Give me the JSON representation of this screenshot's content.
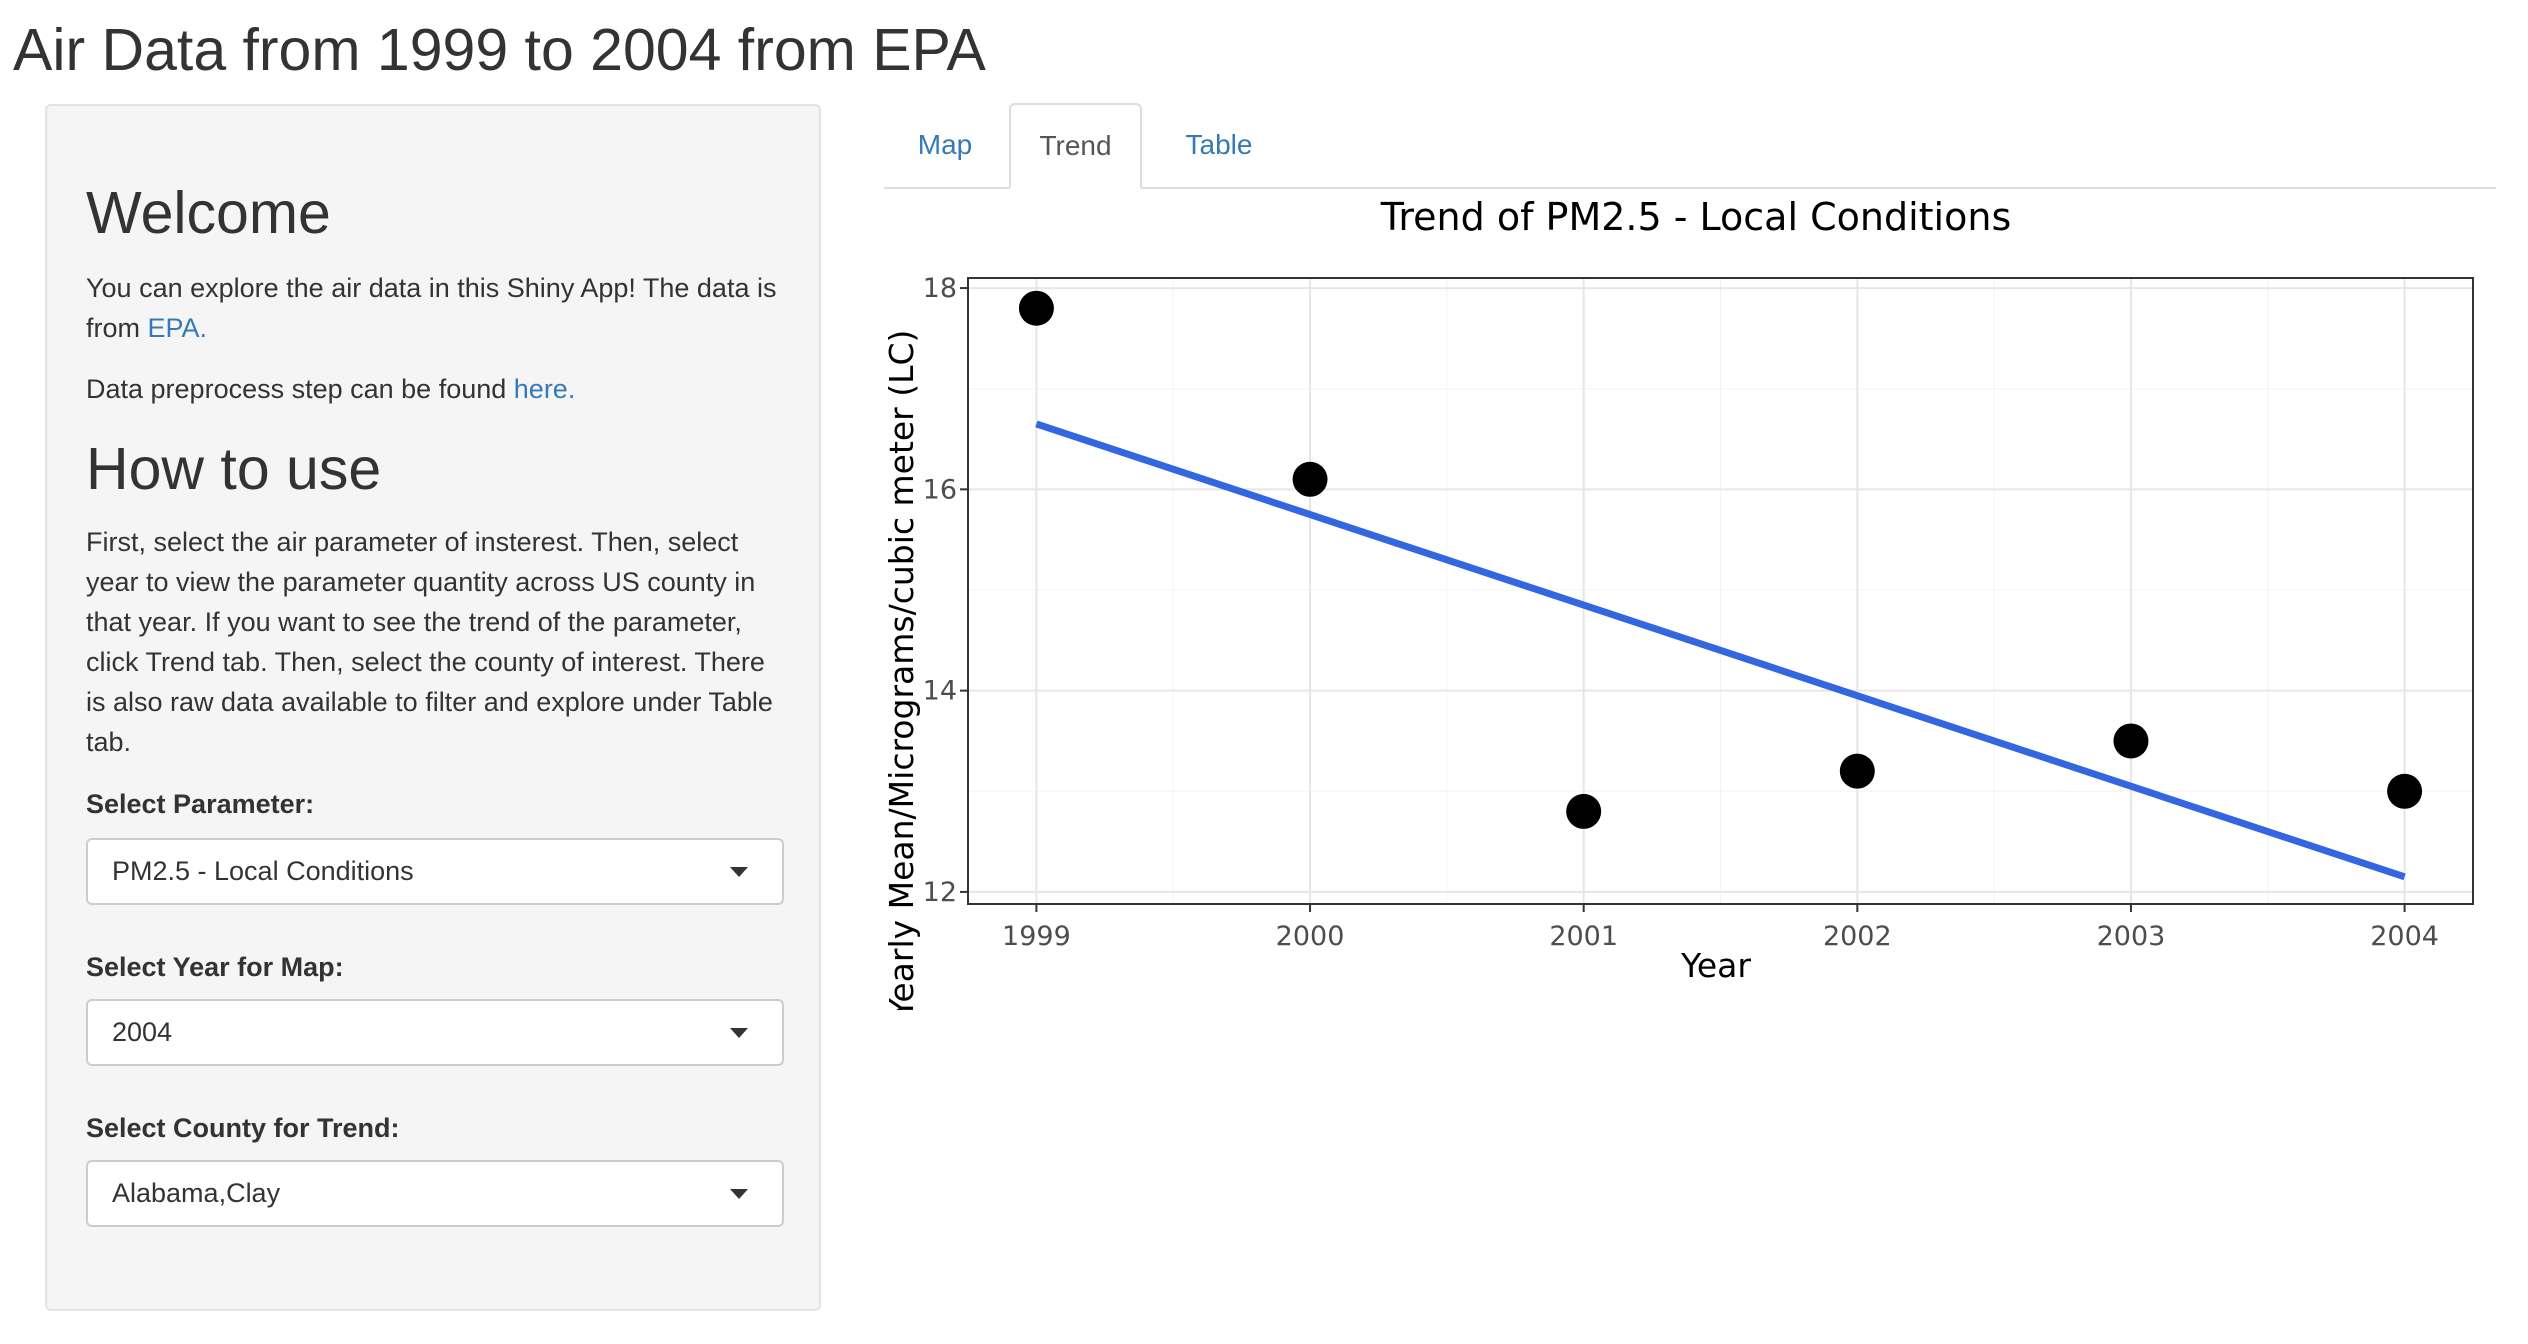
{
  "app_title": "Air Data from 1999 to 2004 from EPA",
  "sidebar": {
    "welcome_heading": "Welcome",
    "welcome_text_1": "You can explore the air data in this Shiny App! The data is from ",
    "epa_link": "EPA.",
    "preprocess_text": "Data preprocess step can be found ",
    "here_link": "here.",
    "howto_heading": "How to use",
    "howto_text": "First, select the air parameter of insterest. Then, select year to view the parameter quantity across US county in that year. If you want to see the trend of the parameter, click Trend tab. Then, select the county of interest. There is also raw data available to filter and explore under Table tab.",
    "parameter_label": "Select Parameter:",
    "parameter_value": "PM2.5 - Local Conditions",
    "year_label": "Select Year for Map:",
    "year_value": "2004",
    "county_label": "Select County for Trend:",
    "county_value": "Alabama,Clay"
  },
  "tabs": [
    {
      "label": "Map",
      "active": false
    },
    {
      "label": "Trend",
      "active": true
    },
    {
      "label": "Table",
      "active": false
    }
  ],
  "colors": {
    "link": "#337ab7",
    "trend_line": "#3366e0",
    "points": "#000000"
  },
  "chart_data": {
    "type": "scatter",
    "title": "Trend of PM2.5 - Local Conditions",
    "xlabel": "Year",
    "ylabel": "Yearly Mean/Micrograms/cubic meter (LC)",
    "x": [
      1999,
      2000,
      2001,
      2002,
      2003,
      2004
    ],
    "y": [
      17.8,
      16.1,
      12.8,
      13.2,
      13.5,
      13.0
    ],
    "xticks": [
      "1999",
      "2000",
      "2001",
      "2002",
      "2003",
      "2004"
    ],
    "yticks": [
      "12",
      "14",
      "16",
      "18"
    ],
    "xlim": [
      1998.75,
      2004.25
    ],
    "ylim": [
      11.88,
      18.1
    ],
    "fit_line": {
      "x": [
        1999,
        2004
      ],
      "y": [
        16.65,
        12.15
      ]
    },
    "grid": true,
    "legend": "none"
  }
}
